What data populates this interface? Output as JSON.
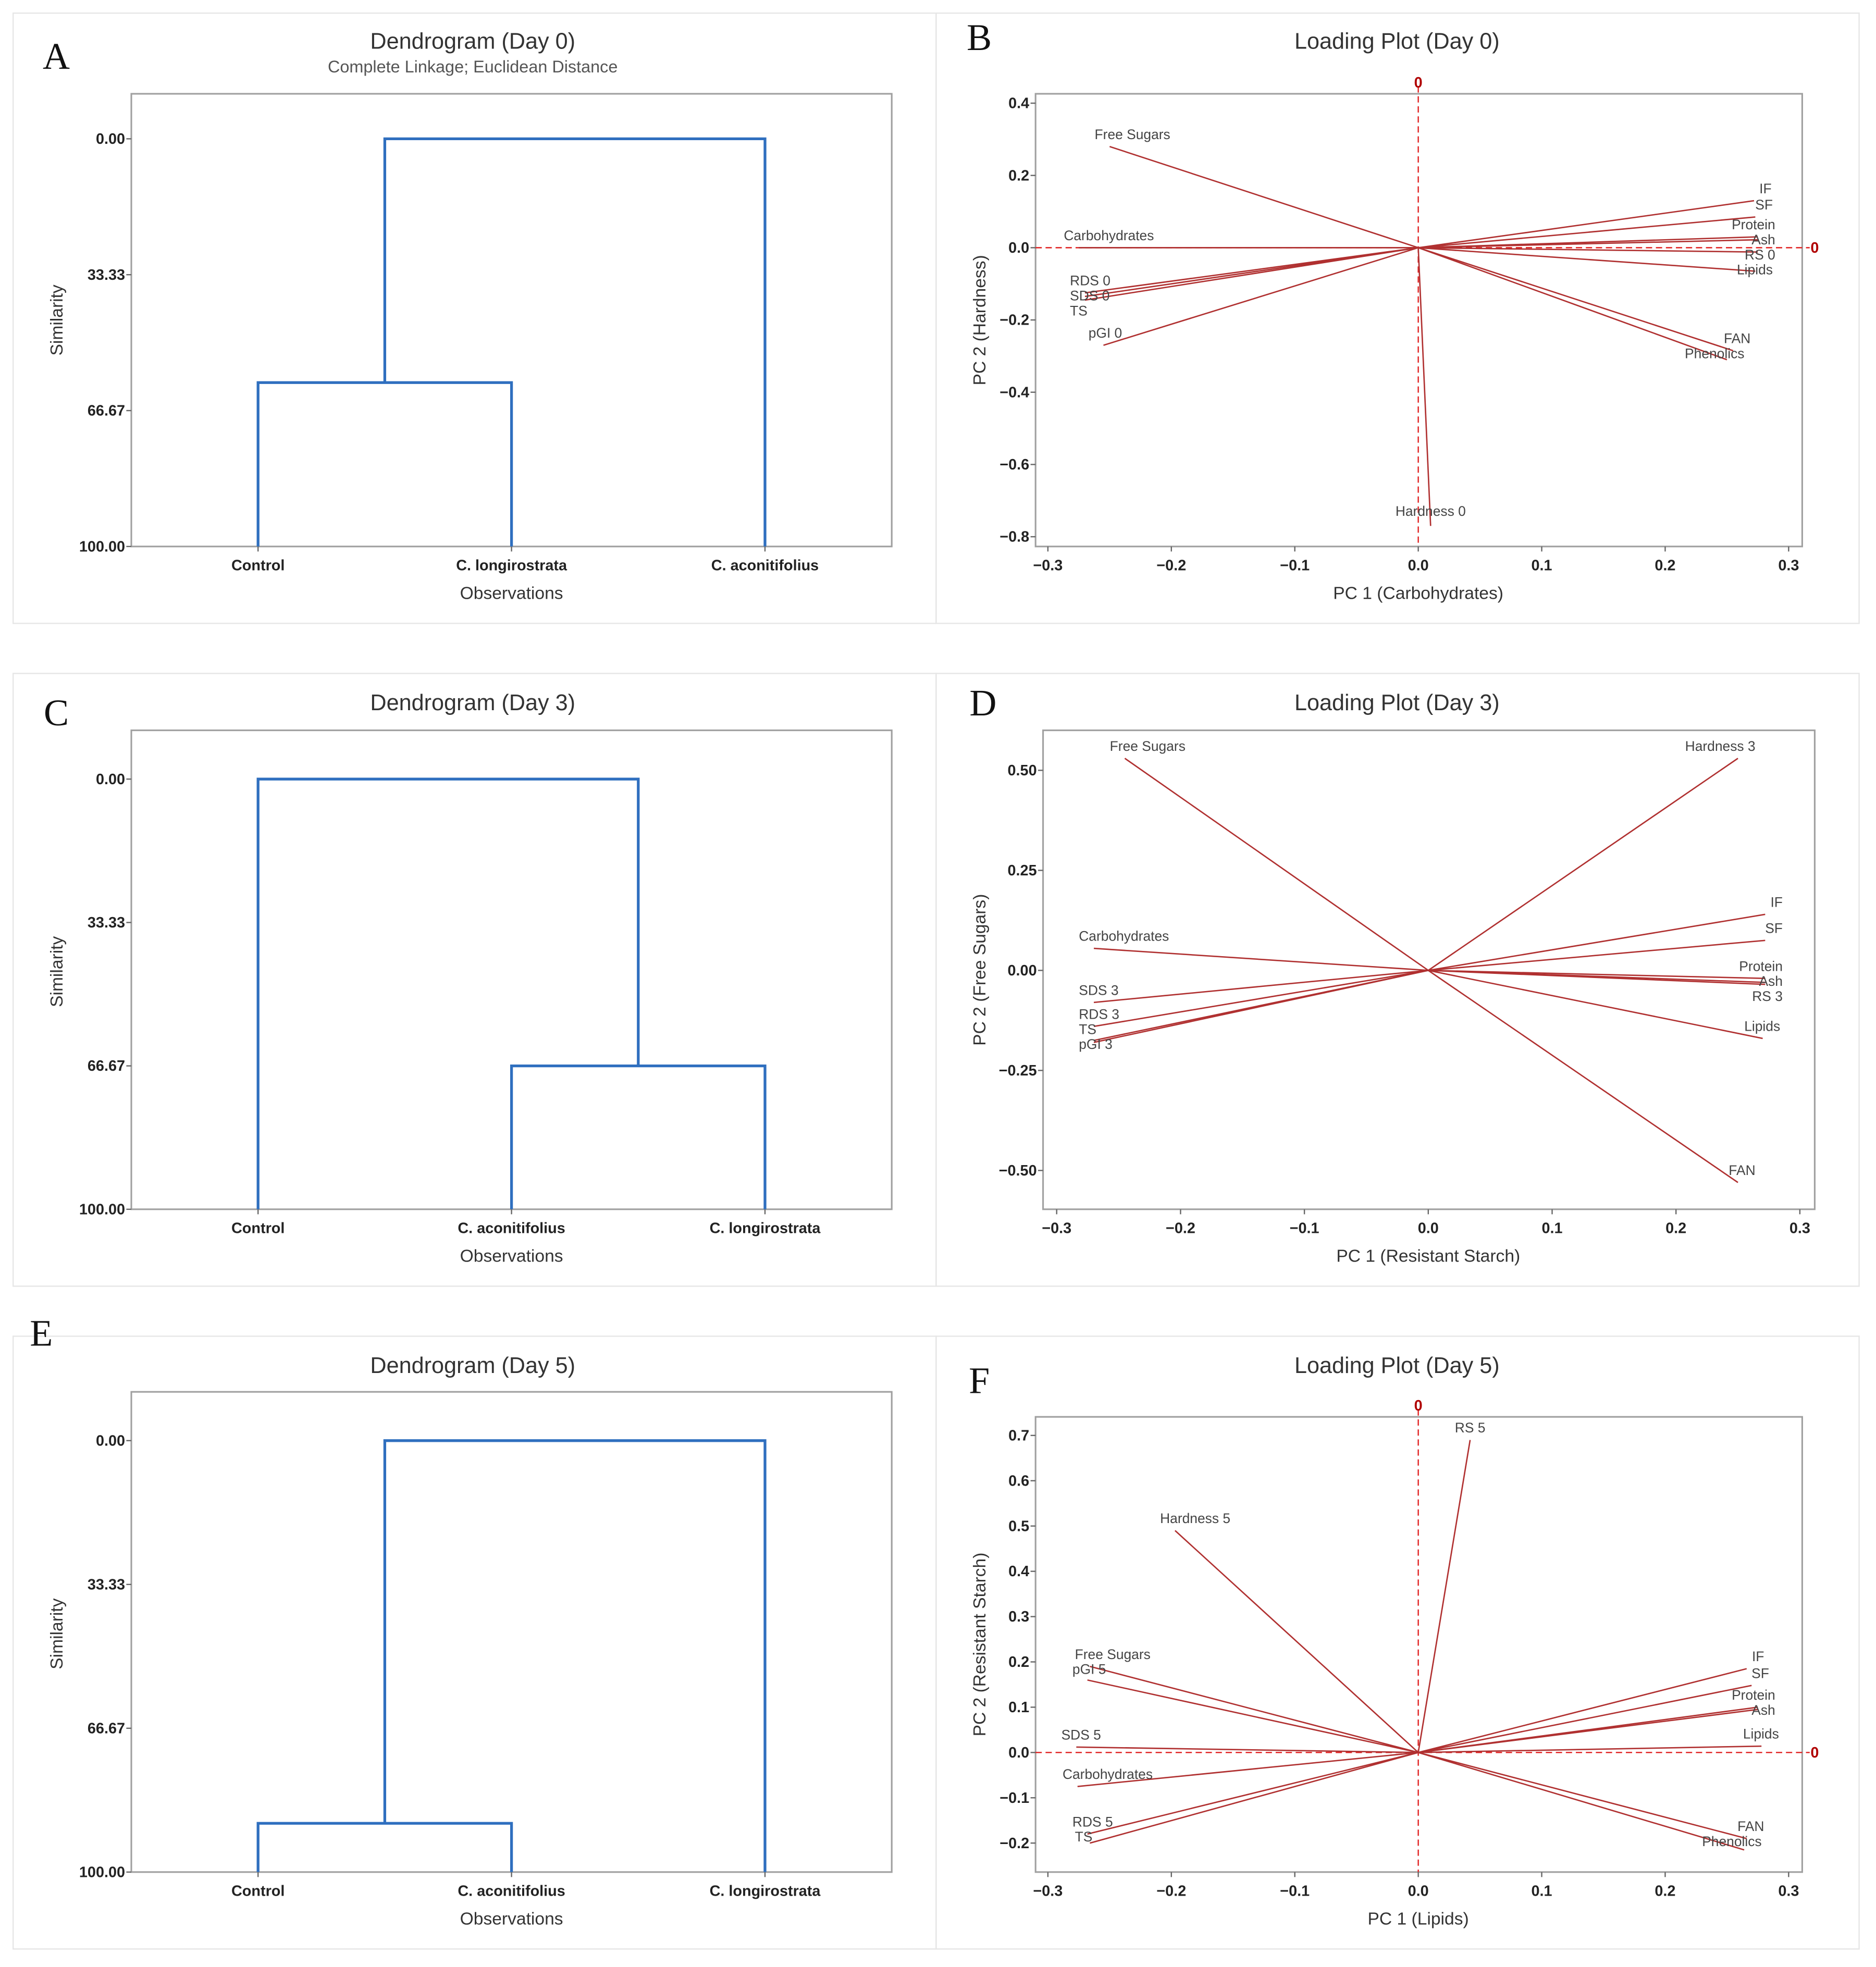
{
  "colors": {
    "dendrogram": "#2f6fbf",
    "loading": "#b03030",
    "reference": "#e02020",
    "frame": "#a0a0a0"
  },
  "chart_data": [
    {
      "panel": "A",
      "type": "dendrogram",
      "title": "Dendrogram (Day 0)",
      "subtitle": "Complete Linkage; Euclidean Distance",
      "xlabel": "Observations",
      "ylabel": "Similarity",
      "yticks": [
        "0.00",
        "33.33",
        "66.67",
        "100.00"
      ],
      "ylim": [
        0,
        100
      ],
      "leaves": [
        "Control",
        "C. longirostrata",
        "C. aconitifolius"
      ],
      "merges": [
        {
          "left": 0,
          "right": 1,
          "similarity": 59.8
        },
        {
          "left": "m0",
          "right": 2,
          "similarity": 0
        }
      ]
    },
    {
      "panel": "B",
      "type": "line",
      "title": "Loading Plot (Day 0)",
      "xlabel": "PC 1 (Carbohydrates)",
      "ylabel": "PC 2 (Hardness)",
      "xlim": [
        -0.31,
        0.311
      ],
      "ylim": [
        -0.827,
        0.426
      ],
      "xticks": [
        -0.3,
        -0.2,
        -0.1,
        0.0,
        0.1,
        0.2,
        0.3
      ],
      "xtick_labels": [
        "−0.3",
        "−0.2",
        "−0.1",
        "0.0",
        "0.1",
        "0.2",
        "0.3"
      ],
      "yticks": [
        -0.8,
        -0.6,
        -0.4,
        -0.2,
        0.0,
        0.2,
        0.4
      ],
      "ytick_labels": [
        "−0.8",
        "−0.6",
        "−0.4",
        "−0.2",
        "0.0",
        "0.2",
        "0.4"
      ],
      "reference_lines": true,
      "reference_label": "0",
      "vectors": [
        {
          "name": "Free Sugars",
          "x": -0.25,
          "y": 0.28
        },
        {
          "name": "Carbohydrates",
          "x": -0.275,
          "y": 0.0
        },
        {
          "name": "RDS 0",
          "x": -0.27,
          "y": -0.125
        },
        {
          "name": "SDS 0",
          "x": -0.27,
          "y": -0.135
        },
        {
          "name": "TS",
          "x": -0.27,
          "y": -0.145
        },
        {
          "name": "pGI 0",
          "x": -0.255,
          "y": -0.27
        },
        {
          "name": "Hardness 0",
          "x": 0.01,
          "y": -0.77
        },
        {
          "name": "IF",
          "x": 0.272,
          "y": 0.13
        },
        {
          "name": "SF",
          "x": 0.273,
          "y": 0.085
        },
        {
          "name": "Protein",
          "x": 0.275,
          "y": 0.03
        },
        {
          "name": "Ash",
          "x": 0.275,
          "y": 0.022
        },
        {
          "name": "RS 0",
          "x": 0.275,
          "y": -0.012
        },
        {
          "name": "Lipids",
          "x": 0.273,
          "y": -0.065
        },
        {
          "name": "FAN",
          "x": 0.255,
          "y": -0.285
        },
        {
          "name": "Phenolics",
          "x": 0.25,
          "y": -0.31
        }
      ]
    },
    {
      "panel": "C",
      "type": "dendrogram",
      "title": "Dendrogram (Day 3)",
      "subtitle": "",
      "xlabel": "Observations",
      "ylabel": "Similarity",
      "yticks": [
        "0.00",
        "33.33",
        "66.67",
        "100.00"
      ],
      "ylim": [
        0,
        100
      ],
      "leaves": [
        "Control",
        "C. aconitifolius",
        "C. longirostrata"
      ],
      "merges": [
        {
          "left": 1,
          "right": 2,
          "similarity": 66.67
        },
        {
          "left": 0,
          "right": "m0",
          "similarity": 0
        }
      ]
    },
    {
      "panel": "D",
      "type": "line",
      "title": "Loading Plot (Day 3)",
      "xlabel": "PC 1 (Resistant Starch)",
      "ylabel": "PC 2 (Free Sugars)",
      "xlim": [
        -0.311,
        0.312
      ],
      "ylim": [
        -0.597,
        0.6
      ],
      "xticks": [
        -0.3,
        -0.2,
        -0.1,
        0.0,
        0.1,
        0.2,
        0.3
      ],
      "xtick_labels": [
        "−0.3",
        "−0.2",
        "−0.1",
        "0.0",
        "0.1",
        "0.2",
        "0.3"
      ],
      "yticks": [
        -0.5,
        -0.25,
        0.0,
        0.25,
        0.5
      ],
      "ytick_labels": [
        "−0.50",
        "−0.25",
        "0.00",
        "0.25",
        "0.50"
      ],
      "reference_lines": false,
      "reference_label": "",
      "vectors": [
        {
          "name": "Free Sugars",
          "x": -0.245,
          "y": 0.53
        },
        {
          "name": "Hardness 3",
          "x": 0.25,
          "y": 0.53
        },
        {
          "name": "Carbohydrates",
          "x": -0.27,
          "y": 0.055
        },
        {
          "name": "SDS 3",
          "x": -0.27,
          "y": -0.08
        },
        {
          "name": "RDS 3",
          "x": -0.27,
          "y": -0.14
        },
        {
          "name": "TS",
          "x": -0.27,
          "y": -0.175
        },
        {
          "name": "pGI 3",
          "x": -0.27,
          "y": -0.18
        },
        {
          "name": "IF",
          "x": 0.272,
          "y": 0.14
        },
        {
          "name": "SF",
          "x": 0.272,
          "y": 0.075
        },
        {
          "name": "Protein",
          "x": 0.272,
          "y": -0.02
        },
        {
          "name": "Ash",
          "x": 0.272,
          "y": -0.03
        },
        {
          "name": "RS 3",
          "x": 0.272,
          "y": -0.035
        },
        {
          "name": "Lipids",
          "x": 0.27,
          "y": -0.17
        },
        {
          "name": "FAN",
          "x": 0.25,
          "y": -0.53
        }
      ]
    },
    {
      "panel": "E",
      "type": "dendrogram",
      "title": "Dendrogram (Day 5)",
      "subtitle": "",
      "xlabel": "Observations",
      "ylabel": "Similarity",
      "yticks": [
        "0.00",
        "33.33",
        "66.67",
        "100.00"
      ],
      "ylim": [
        0,
        100
      ],
      "leaves": [
        "Control",
        "C. aconitifolius",
        "C. longirostrata"
      ],
      "merges": [
        {
          "left": 0,
          "right": 1,
          "similarity": 88.7
        },
        {
          "left": "m0",
          "right": 2,
          "similarity": 0
        }
      ]
    },
    {
      "panel": "F",
      "type": "line",
      "title": "Loading Plot (Day 5)",
      "xlabel": "PC 1 (Lipids)",
      "ylabel": "PC 2 (Resistant Starch)",
      "xlim": [
        -0.31,
        0.311
      ],
      "ylim": [
        -0.264,
        0.741
      ],
      "xticks": [
        -0.3,
        -0.2,
        -0.1,
        0.0,
        0.1,
        0.2,
        0.3
      ],
      "xtick_labels": [
        "−0.3",
        "−0.2",
        "−0.1",
        "0.0",
        "0.1",
        "0.2",
        "0.3"
      ],
      "yticks": [
        -0.2,
        -0.1,
        0.0,
        0.1,
        0.2,
        0.3,
        0.4,
        0.5,
        0.6,
        0.7
      ],
      "ytick_labels": [
        "−0.2",
        "−0.1",
        "0.0",
        "0.1",
        "0.2",
        "0.3",
        "0.4",
        "0.5",
        "0.6",
        "0.7"
      ],
      "reference_lines": true,
      "reference_label": "0",
      "vectors": [
        {
          "name": "RS 5",
          "x": 0.042,
          "y": 0.69
        },
        {
          "name": "Hardness 5",
          "x": -0.197,
          "y": 0.49
        },
        {
          "name": "Free Sugars",
          "x": -0.266,
          "y": 0.19
        },
        {
          "name": "pGI 5",
          "x": -0.268,
          "y": 0.16
        },
        {
          "name": "SDS 5",
          "x": -0.277,
          "y": 0.012
        },
        {
          "name": "Carbohydrates",
          "x": -0.276,
          "y": -0.075
        },
        {
          "name": "RDS 5",
          "x": -0.268,
          "y": -0.18
        },
        {
          "name": "TS",
          "x": -0.266,
          "y": -0.2
        },
        {
          "name": "IF",
          "x": 0.266,
          "y": 0.185
        },
        {
          "name": "SF",
          "x": 0.27,
          "y": 0.148
        },
        {
          "name": "Protein",
          "x": 0.275,
          "y": 0.1
        },
        {
          "name": "Ash",
          "x": 0.275,
          "y": 0.095
        },
        {
          "name": "Lipids",
          "x": 0.278,
          "y": 0.014
        },
        {
          "name": "FAN",
          "x": 0.266,
          "y": -0.19
        },
        {
          "name": "Phenolics",
          "x": 0.264,
          "y": -0.215
        }
      ]
    }
  ]
}
